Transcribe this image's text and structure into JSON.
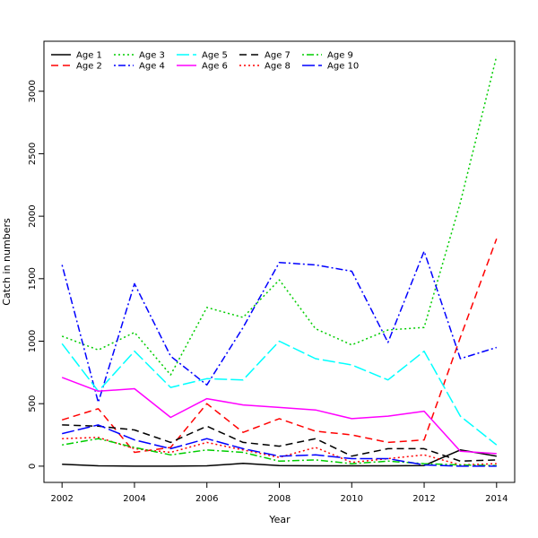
{
  "chart_data": {
    "type": "line",
    "title": "",
    "xlabel": "Year",
    "ylabel": "Catch in numbers",
    "xlim": [
      2001.5,
      2014.5
    ],
    "ylim": [
      -130,
      3400
    ],
    "x_ticks": [
      2002,
      2004,
      2006,
      2008,
      2010,
      2012,
      2014
    ],
    "y_ticks": [
      0,
      500,
      1000,
      1500,
      2000,
      2500,
      3000
    ],
    "grid": false,
    "legend_position": "top-left",
    "x": [
      2002,
      2003,
      2004,
      2005,
      2006,
      2007,
      2008,
      2009,
      2010,
      2011,
      2012,
      2013,
      2014
    ],
    "series": [
      {
        "name": "Age 1",
        "color": "#000000",
        "dash": "solid",
        "values": [
          15,
          3,
          0,
          0,
          3,
          22,
          5,
          3,
          3,
          3,
          5,
          130,
          80
        ]
      },
      {
        "name": "Age 2",
        "color": "#ff0000",
        "dash": "dashed",
        "values": [
          370,
          460,
          110,
          150,
          500,
          270,
          380,
          280,
          250,
          190,
          210,
          1030,
          1820
        ]
      },
      {
        "name": "Age 3",
        "color": "#00cd00",
        "dash": "dotted",
        "values": [
          1040,
          930,
          1070,
          730,
          1270,
          1190,
          1490,
          1100,
          970,
          1090,
          1110,
          2110,
          3280
        ]
      },
      {
        "name": "Age 4",
        "color": "#0000ff",
        "dash": "dotdash",
        "values": [
          1610,
          510,
          1460,
          880,
          650,
          1110,
          1630,
          1610,
          1560,
          990,
          1720,
          860,
          950
        ]
      },
      {
        "name": "Age 5",
        "color": "#00ffff",
        "dash": "longdash",
        "values": [
          980,
          600,
          920,
          630,
          700,
          690,
          1000,
          860,
          810,
          690,
          920,
          400,
          170
        ]
      },
      {
        "name": "Age 6",
        "color": "#ff00ff",
        "dash": "solid",
        "values": [
          710,
          600,
          620,
          390,
          540,
          490,
          470,
          450,
          380,
          400,
          440,
          120,
          100
        ]
      },
      {
        "name": "Age 7",
        "color": "#000000",
        "dash": "dashed",
        "values": [
          330,
          320,
          290,
          190,
          320,
          190,
          160,
          220,
          80,
          140,
          140,
          40,
          50
        ]
      },
      {
        "name": "Age 8",
        "color": "#ff0000",
        "dash": "dotted",
        "values": [
          220,
          230,
          140,
          110,
          190,
          130,
          70,
          150,
          30,
          60,
          90,
          10,
          20
        ]
      },
      {
        "name": "Age 9",
        "color": "#00cd00",
        "dash": "dotdash",
        "values": [
          170,
          220,
          150,
          90,
          130,
          110,
          40,
          50,
          20,
          40,
          20,
          10,
          5
        ]
      },
      {
        "name": "Age 10",
        "color": "#0000ff",
        "dash": "longdash",
        "values": [
          260,
          330,
          210,
          140,
          220,
          140,
          80,
          90,
          60,
          60,
          10,
          0,
          0
        ]
      }
    ]
  }
}
